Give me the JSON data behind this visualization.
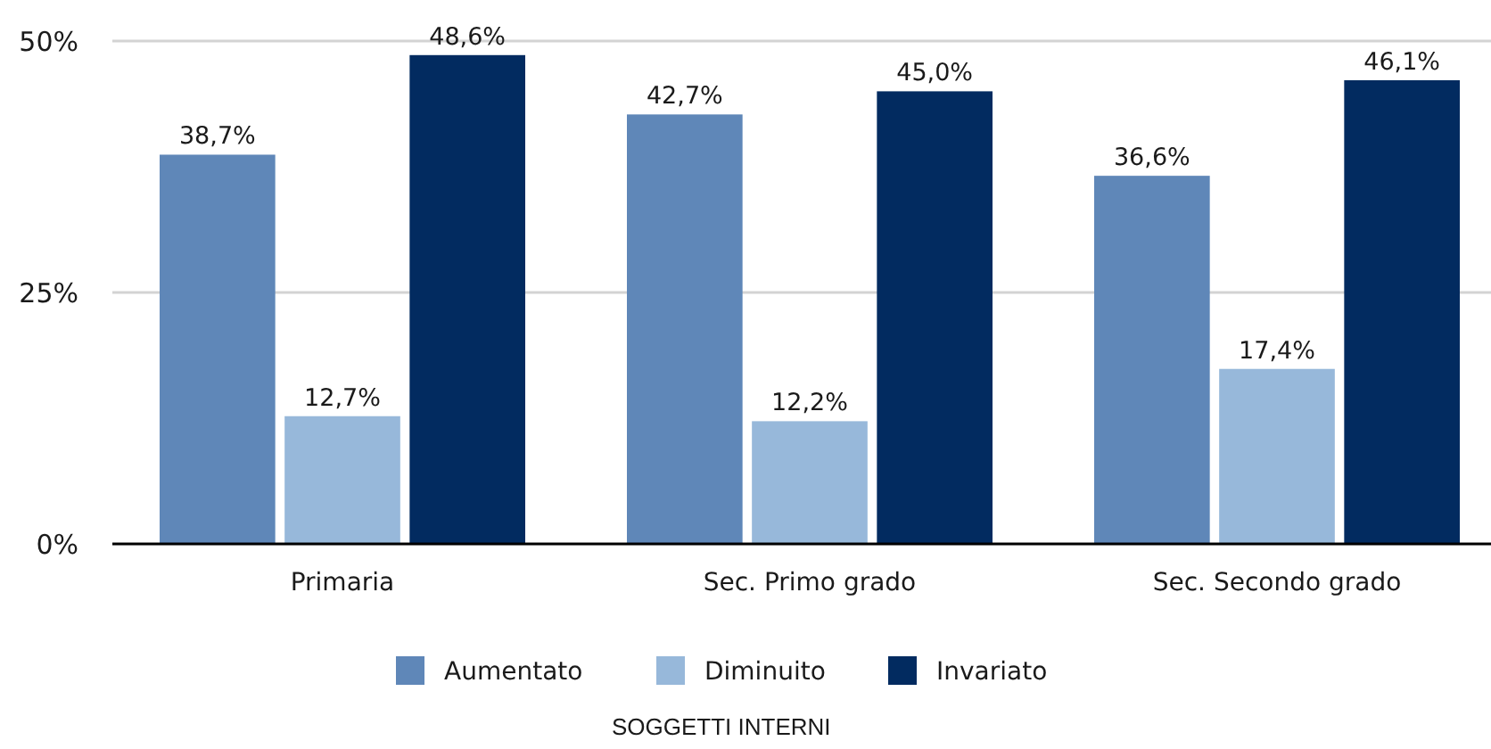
{
  "chart_data": {
    "type": "bar",
    "title": "SOGGETTI INTERNI",
    "categories": [
      "Primaria",
      "Sec. Primo grado",
      "Sec. Secondo grado"
    ],
    "series": [
      {
        "name": "Aumentato",
        "color": "#5f87b8",
        "values": [
          38.7,
          42.7,
          36.6
        ],
        "value_labels": [
          "38,7%",
          "42,7%",
          "36,6%"
        ]
      },
      {
        "name": "Diminuito",
        "color": "#97b8da",
        "values": [
          12.7,
          12.2,
          17.4
        ],
        "value_labels": [
          "12,7%",
          "12,2%",
          "17,4%"
        ]
      },
      {
        "name": "Invariato",
        "color": "#022b60",
        "values": [
          48.6,
          45.0,
          46.1
        ],
        "value_labels": [
          "48,6%",
          "45,0%",
          "46,1%"
        ]
      }
    ],
    "ylim": [
      0,
      50
    ],
    "yticks": [
      {
        "value": 0,
        "label": "0%"
      },
      {
        "value": 25,
        "label": "25%"
      },
      {
        "value": 50,
        "label": "50%"
      }
    ],
    "grid": "y",
    "legend": "bottom"
  }
}
